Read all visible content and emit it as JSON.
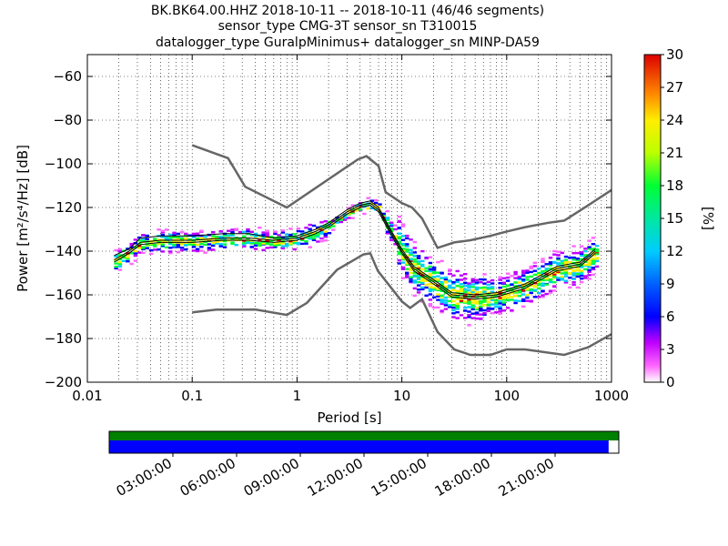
{
  "chart_data": {
    "type": "heatmap",
    "title_lines": [
      "BK.BK64.00.HHZ   2018-10-11 -- 2018-10-11  (46/46 segments)",
      "sensor_type CMG-3T sensor_sn T310015",
      "datalogger_type GuralpMinimus+ datalogger_sn MINP-DA59"
    ],
    "xlabel": "Period [s]",
    "ylabel": "Power [m²/s⁴/Hz] [dB]",
    "x_scale": "log",
    "xlim": [
      0.01,
      1000
    ],
    "ylim": [
      -200,
      -50
    ],
    "x_ticks": [
      {
        "value": 0.01,
        "label": "0.01"
      },
      {
        "value": 0.1,
        "label": "0.1"
      },
      {
        "value": 1,
        "label": "1"
      },
      {
        "value": 10,
        "label": "10"
      },
      {
        "value": 100,
        "label": "100"
      },
      {
        "value": 1000,
        "label": "1000"
      }
    ],
    "y_ticks": [
      {
        "value": -60,
        "label": "−60"
      },
      {
        "value": -80,
        "label": "−80"
      },
      {
        "value": -100,
        "label": "−100"
      },
      {
        "value": -120,
        "label": "−120"
      },
      {
        "value": -140,
        "label": "−140"
      },
      {
        "value": -160,
        "label": "−160"
      },
      {
        "value": -180,
        "label": "−180"
      },
      {
        "value": -200,
        "label": "−200"
      }
    ],
    "grid": true,
    "colorbar": {
      "label": "[%]",
      "range": [
        0,
        30
      ],
      "ticks": [
        {
          "value": 0,
          "label": "0"
        },
        {
          "value": 3,
          "label": "3"
        },
        {
          "value": 6,
          "label": "6"
        },
        {
          "value": 9,
          "label": "9"
        },
        {
          "value": 12,
          "label": "12"
        },
        {
          "value": 15,
          "label": "15"
        },
        {
          "value": 18,
          "label": "18"
        },
        {
          "value": 21,
          "label": "21"
        },
        {
          "value": 24,
          "label": "24"
        },
        {
          "value": 27,
          "label": "27"
        },
        {
          "value": 30,
          "label": "30"
        }
      ]
    },
    "noise_models": [
      {
        "points": [
          [
            0.1,
            -91.5
          ],
          [
            0.22,
            -97.4
          ],
          [
            0.32,
            -110.5
          ],
          [
            0.8,
            -120
          ],
          [
            3.8,
            -98
          ],
          [
            4.6,
            -96.5
          ],
          [
            6,
            -101
          ],
          [
            7,
            -113
          ],
          [
            10,
            -118
          ],
          [
            12.5,
            -120
          ],
          [
            15.6,
            -125
          ],
          [
            21.9,
            -138.5
          ],
          [
            31.6,
            -136
          ],
          [
            45,
            -135
          ],
          [
            70,
            -133
          ],
          [
            100,
            -131
          ],
          [
            150,
            -129
          ],
          [
            250,
            -127
          ],
          [
            354,
            -126
          ],
          [
            600,
            -119
          ],
          [
            1000,
            -112
          ]
        ]
      },
      {
        "points": [
          [
            0.1,
            -168
          ],
          [
            0.17,
            -166.8
          ],
          [
            0.4,
            -166.7
          ],
          [
            0.8,
            -169.2
          ],
          [
            1.24,
            -163.7
          ],
          [
            2.4,
            -148.6
          ],
          [
            4.3,
            -141.5
          ],
          [
            5,
            -141
          ],
          [
            5.9,
            -149
          ],
          [
            10,
            -163
          ],
          [
            12,
            -166
          ],
          [
            15.6,
            -162
          ],
          [
            21.9,
            -177
          ],
          [
            31.6,
            -185
          ],
          [
            45,
            -187.5
          ],
          [
            70,
            -187.5
          ],
          [
            100,
            -185
          ],
          [
            150,
            -185
          ],
          [
            354,
            -187.5
          ],
          [
            600,
            -184
          ],
          [
            1000,
            -178
          ]
        ]
      }
    ],
    "percentile_curves": [
      {
        "points": [
          [
            0.018,
            -144
          ],
          [
            0.025,
            -140
          ],
          [
            0.032,
            -136
          ],
          [
            0.05,
            -135
          ],
          [
            0.1,
            -135
          ],
          [
            0.2,
            -134
          ],
          [
            0.35,
            -134
          ],
          [
            0.6,
            -135
          ],
          [
            1,
            -134
          ],
          [
            1.5,
            -131
          ],
          [
            2,
            -128
          ],
          [
            3,
            -122
          ],
          [
            4,
            -119
          ],
          [
            5,
            -118
          ],
          [
            6,
            -121
          ],
          [
            8,
            -132
          ],
          [
            10,
            -140
          ],
          [
            13,
            -148
          ],
          [
            20,
            -154
          ],
          [
            30,
            -160
          ],
          [
            50,
            -161
          ],
          [
            80,
            -160
          ],
          [
            150,
            -156
          ],
          [
            300,
            -148
          ],
          [
            500,
            -146
          ],
          [
            700,
            -140
          ]
        ]
      },
      {
        "points": [
          [
            0.018,
            -142
          ],
          [
            0.025,
            -139
          ],
          [
            0.032,
            -134
          ],
          [
            0.05,
            -133
          ],
          [
            0.1,
            -133
          ],
          [
            0.2,
            -132
          ],
          [
            0.35,
            -132
          ],
          [
            0.6,
            -134
          ],
          [
            1,
            -133
          ],
          [
            1.5,
            -130
          ],
          [
            2,
            -127
          ],
          [
            3,
            -121
          ],
          [
            4,
            -118
          ],
          [
            5,
            -117
          ],
          [
            6,
            -120
          ],
          [
            8,
            -131
          ],
          [
            10,
            -139
          ],
          [
            13,
            -147
          ],
          [
            20,
            -153
          ],
          [
            30,
            -159
          ],
          [
            50,
            -160
          ],
          [
            80,
            -159
          ],
          [
            150,
            -155
          ],
          [
            300,
            -147
          ],
          [
            500,
            -145
          ],
          [
            700,
            -139
          ]
        ]
      },
      {
        "points": [
          [
            0.018,
            -145
          ],
          [
            0.025,
            -141
          ],
          [
            0.032,
            -137
          ],
          [
            0.05,
            -136
          ],
          [
            0.1,
            -136
          ],
          [
            0.2,
            -135
          ],
          [
            0.35,
            -135
          ],
          [
            0.6,
            -136
          ],
          [
            1,
            -135
          ],
          [
            1.5,
            -132
          ],
          [
            2,
            -129
          ],
          [
            3,
            -123
          ],
          [
            4,
            -120
          ],
          [
            5,
            -119
          ],
          [
            6,
            -122
          ],
          [
            8,
            -133
          ],
          [
            10,
            -141
          ],
          [
            13,
            -149
          ],
          [
            20,
            -155
          ],
          [
            30,
            -161
          ],
          [
            50,
            -162
          ],
          [
            80,
            -161
          ],
          [
            150,
            -157
          ],
          [
            300,
            -149
          ],
          [
            500,
            -147
          ],
          [
            700,
            -141
          ]
        ]
      }
    ],
    "timeline": {
      "tick_labels": [
        "03:00:00",
        "06:00:00",
        "09:00:00",
        "12:00:00",
        "15:00:00",
        "18:00:00",
        "21:00:00"
      ],
      "tick_hours": [
        3,
        6,
        9,
        12,
        15,
        18,
        21
      ],
      "span_hours": 24,
      "top_bar_color": "#008000",
      "bottom_bar_color": "#0000ff",
      "bottom_bar_coverage": 0.98
    }
  }
}
